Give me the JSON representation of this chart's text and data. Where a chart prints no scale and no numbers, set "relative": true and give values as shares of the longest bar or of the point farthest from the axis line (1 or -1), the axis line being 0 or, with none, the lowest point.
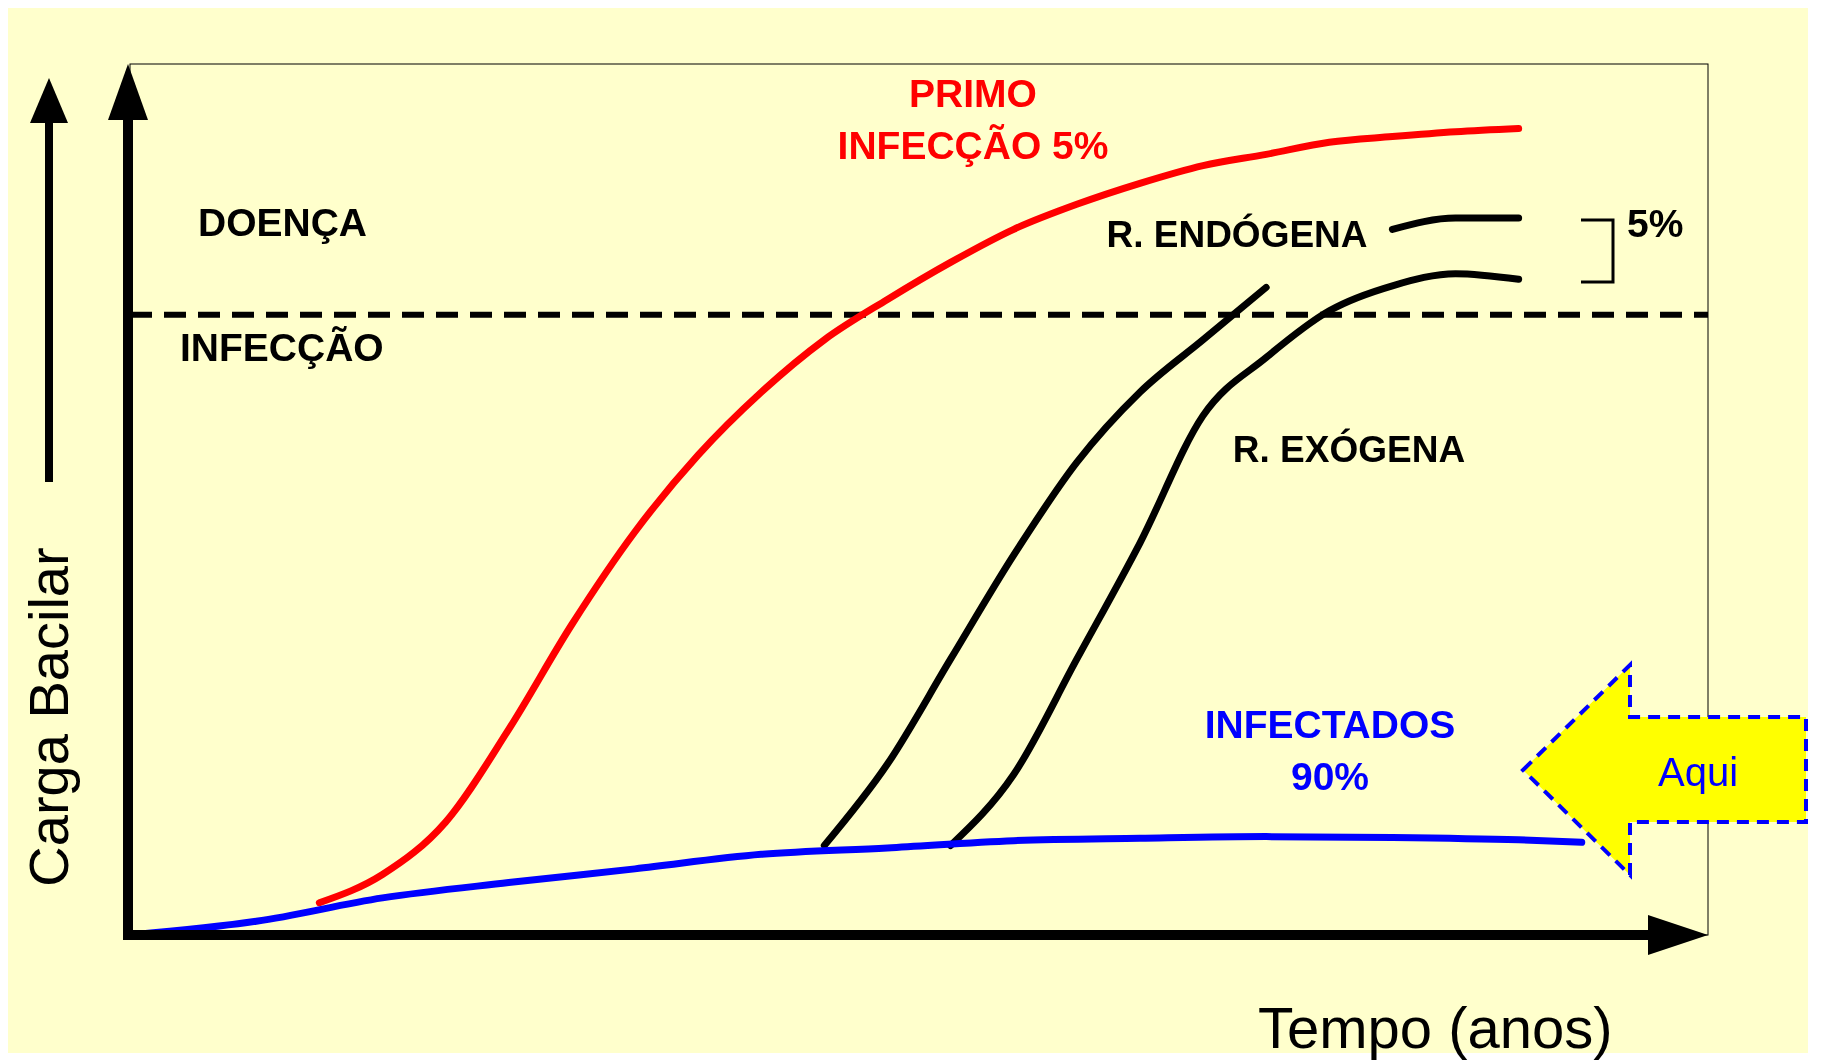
{
  "chart_data": {
    "type": "line",
    "relative": true,
    "xlabel": "Tempo (anos)",
    "ylabel": "Carga Bacilar",
    "categories": [
      null,
      null,
      null,
      null,
      null,
      null,
      null,
      null,
      null,
      null,
      null,
      null,
      null,
      null,
      null,
      null,
      null,
      null,
      null,
      null,
      null,
      null,
      null,
      null,
      null,
      null
    ],
    "series": [
      {
        "name": "PRIMO INFECÇÃO 5%",
        "color": "#ff0000",
        "values": [
          null,
          null,
          null,
          0.04,
          0.075,
          0.14,
          0.255,
          0.385,
          0.5,
          0.595,
          0.673,
          0.738,
          0.788,
          0.834,
          0.875,
          0.906,
          0.932,
          0.954,
          0.968,
          0.983,
          0.99,
          0.996,
          1,
          null,
          null,
          null
        ]
      },
      {
        "name": "R. ENDÓGENA",
        "color": "#000000",
        "values": [
          null,
          null,
          null,
          null,
          null,
          null,
          null,
          null,
          null,
          null,
          null,
          0.111,
          0.212,
          0.342,
          0.471,
          0.586,
          0.673,
          0.738,
          0.803,
          null,
          0.875,
          0.889,
          0.889,
          null,
          null,
          null
        ]
      },
      {
        "name": "R. EXÓGENA",
        "color": "#000000",
        "values": [
          null,
          null,
          null,
          null,
          null,
          null,
          null,
          null,
          null,
          null,
          null,
          null,
          null,
          0.111,
          0.199,
          0.342,
          0.486,
          0.644,
          0.716,
          0.774,
          0.805,
          0.82,
          0.813,
          null,
          null,
          null
        ]
      },
      {
        "name": "INFECTADOS 90%",
        "color": "#0000ff",
        "values": [
          0,
          null,
          0.017,
          null,
          0.046,
          null,
          0.065,
          null,
          0.082,
          null,
          0.1,
          null,
          0.108,
          null,
          0.117,
          null,
          0.12,
          null,
          0.122,
          null,
          0.121,
          null,
          0.118,
          0.115,
          null,
          null
        ]
      }
    ],
    "ref_lines": [
      {
        "axis": "y",
        "value": 0.769,
        "color": "#000000",
        "line_style": "dashed"
      }
    ],
    "annotations": [
      "DOENÇA",
      "INFECÇÃO",
      "5%",
      "Aqui"
    ],
    "marker": "none",
    "line_style": "solid"
  }
}
